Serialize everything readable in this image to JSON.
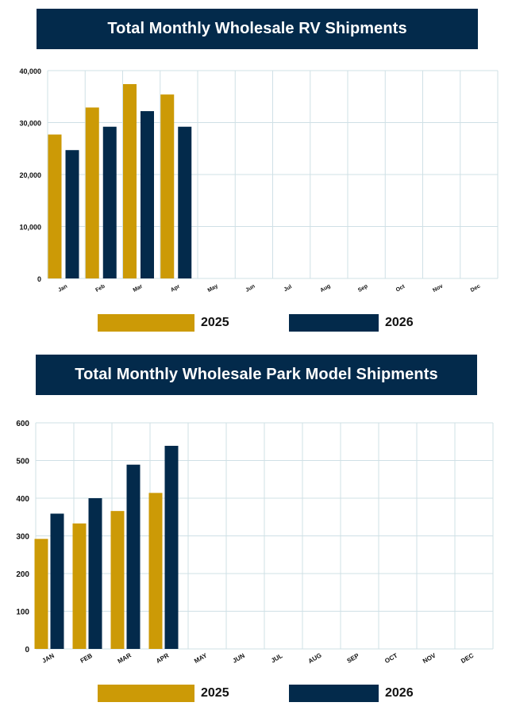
{
  "colors": {
    "series_2025": "#cc9a06",
    "series_2026": "#032a4b",
    "grid": "#cfe0e6",
    "banner": "#032a4b"
  },
  "chart_data": [
    {
      "type": "bar",
      "title": "Total Monthly Wholesale RV Shipments",
      "categories": [
        "Jan",
        "Feb",
        "Mar",
        "Apr",
        "May",
        "Jun",
        "Jul",
        "Aug",
        "Sep",
        "Oct",
        "Nov",
        "Dec"
      ],
      "series": [
        {
          "name": "2025",
          "values": [
            27700,
            32900,
            37400,
            35400,
            null,
            null,
            null,
            null,
            null,
            null,
            null,
            null
          ]
        },
        {
          "name": "2026",
          "values": [
            24700,
            29200,
            32200,
            29200,
            null,
            null,
            null,
            null,
            null,
            null,
            null,
            null
          ]
        }
      ],
      "yticks": [
        "0",
        "10,000",
        "20,000",
        "30,000",
        "40,000"
      ],
      "ylim": [
        0,
        40000
      ],
      "grid": true,
      "legend": "bottom"
    },
    {
      "type": "bar",
      "title": "Total Monthly Wholesale Park Model Shipments",
      "categories": [
        "Jan",
        "Feb",
        "Mar",
        "Apr",
        "May",
        "Jun",
        "Jul",
        "Aug",
        "Sep",
        "Oct",
        "Nov",
        "Dec"
      ],
      "series": [
        {
          "name": "2025",
          "values": [
            292,
            333,
            366,
            414,
            null,
            null,
            null,
            null,
            null,
            null,
            null,
            null
          ]
        },
        {
          "name": "2026",
          "values": [
            359,
            400,
            489,
            539,
            null,
            null,
            null,
            null,
            null,
            null,
            null,
            null
          ]
        }
      ],
      "yticks": [
        "0",
        "100",
        "200",
        "300",
        "400",
        "500",
        "600"
      ],
      "ylim": [
        0,
        600
      ],
      "grid": true,
      "legend": "bottom"
    }
  ],
  "legend1": {
    "label_2025": "2025",
    "label_2026": "2026"
  },
  "legend2": {
    "label_2025": "2025",
    "label_2026": "2026"
  }
}
